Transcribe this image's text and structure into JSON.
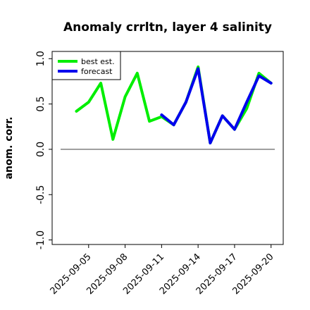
{
  "chart_data": {
    "type": "line",
    "title": "Anomaly crrltn, layer 4 salinity",
    "ylabel": "anom. corr.",
    "xlabel": "",
    "ylim": [
      -1.05,
      1.08
    ],
    "xlim": [
      "2025-09-02",
      "2025-09-21"
    ],
    "yticks": [
      1.0,
      0.5,
      0.0,
      -0.5,
      -1.0
    ],
    "ytick_labels": [
      "1.0",
      "0.5",
      "0.0",
      "-0.5",
      "-1.0"
    ],
    "xticks": [
      "2025-09-05",
      "2025-09-08",
      "2025-09-11",
      "2025-09-14",
      "2025-09-17",
      "2025-09-20"
    ],
    "highlight_tick": "2025-09-11",
    "highlight_color": "#228b22",
    "zero_line": 0.0,
    "legend_position": "top-left",
    "grid": false,
    "series": [
      {
        "name": "best est.",
        "color": "#00ee00",
        "x": [
          "2025-09-04",
          "2025-09-05",
          "2025-09-06",
          "2025-09-07",
          "2025-09-08",
          "2025-09-09",
          "2025-09-10",
          "2025-09-11",
          "2025-09-12",
          "2025-09-13",
          "2025-09-14",
          "2025-09-15",
          "2025-09-16",
          "2025-09-17",
          "2025-09-18",
          "2025-09-19",
          "2025-09-20"
        ],
        "values": [
          0.42,
          0.52,
          0.73,
          0.11,
          0.58,
          0.84,
          0.31,
          0.36,
          0.27,
          0.52,
          0.91,
          0.07,
          0.37,
          0.22,
          0.45,
          0.84,
          0.73
        ]
      },
      {
        "name": "forecast",
        "color": "#0000ee",
        "x": [
          "2025-09-11",
          "2025-09-12",
          "2025-09-13",
          "2025-09-14",
          "2025-09-15",
          "2025-09-16",
          "2025-09-17",
          "2025-09-18",
          "2025-09-19",
          "2025-09-20"
        ],
        "values": [
          0.38,
          0.27,
          0.52,
          0.89,
          0.07,
          0.37,
          0.22,
          0.52,
          0.81,
          0.73
        ]
      }
    ]
  }
}
